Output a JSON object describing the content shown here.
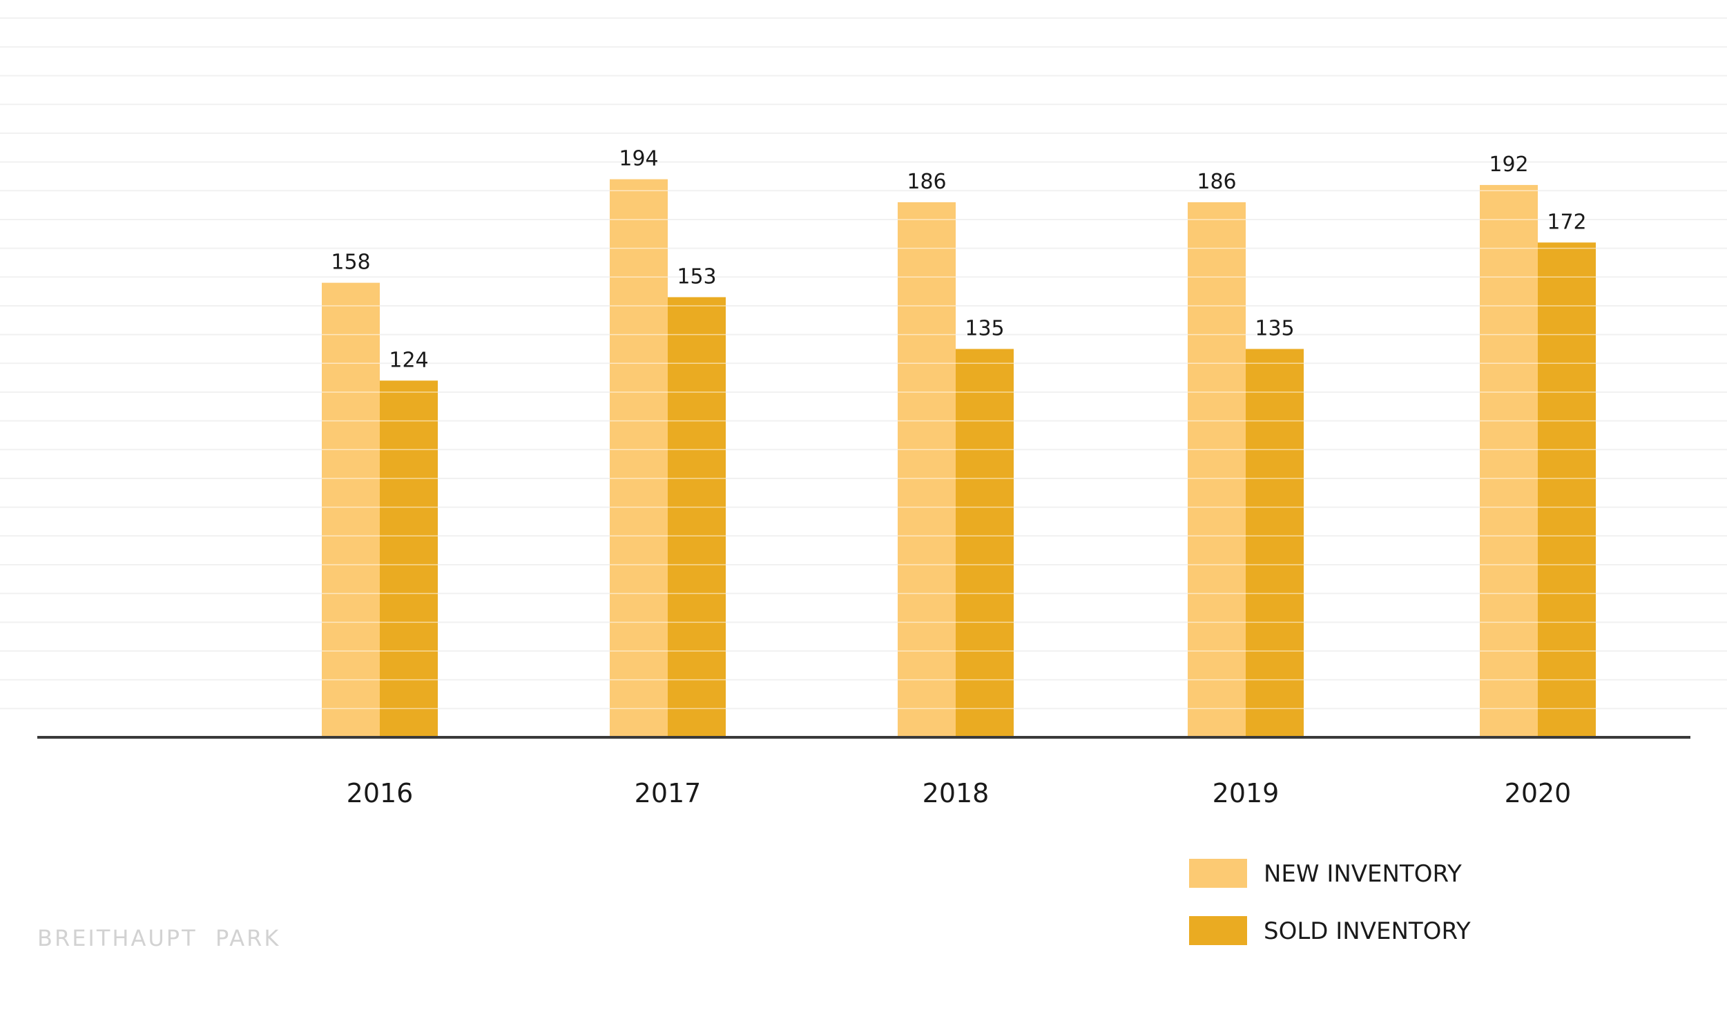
{
  "chart_data": {
    "type": "bar",
    "categories": [
      "2016",
      "2017",
      "2018",
      "2019",
      "2020"
    ],
    "series": [
      {
        "name": "NEW INVENTORY",
        "values": [
          158,
          194,
          186,
          186,
          192
        ],
        "color": "#fcca73"
      },
      {
        "name": "SOLD INVENTORY",
        "values": [
          124,
          153,
          135,
          135,
          172
        ],
        "color": "#eaab22"
      }
    ],
    "ylim": [
      0,
      250
    ],
    "grid": true,
    "gridline_step": 10,
    "legend_position": "bottom-right",
    "title": "",
    "xlabel": "",
    "ylabel": ""
  },
  "watermark": "BREITHAUPT  PARK",
  "colors": {
    "gridline": "#f1f1f1",
    "axis": "#3a3a3a",
    "bar_band": "#ffffff"
  }
}
